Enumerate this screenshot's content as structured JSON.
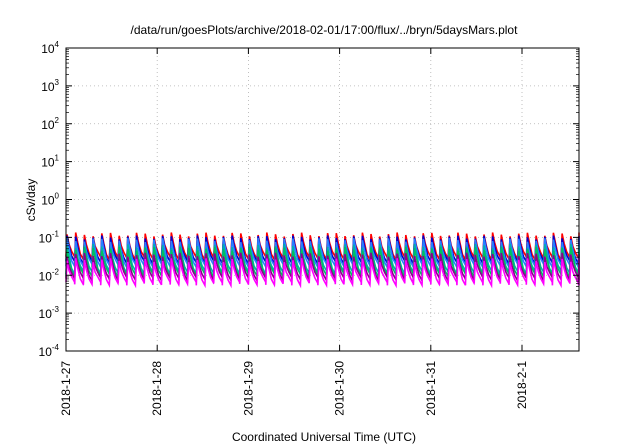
{
  "chart_data": {
    "type": "line",
    "title": "/data/run/goesPlots/archive/2018-02-01/17:00/flux/../bryn/5daysMars.plot",
    "xlabel": "Coordinated Universal Time (UTC)",
    "ylabel": "cSv/day",
    "yscale": "log",
    "ylim": [
      0.0001,
      10000
    ],
    "xlim_days": [
      0,
      5.7
    ],
    "grid": true,
    "x_ticks": [
      {
        "label": "2018-1-27",
        "day": 0
      },
      {
        "label": "2018-1-28",
        "day": 1
      },
      {
        "label": "2018-1-29",
        "day": 2
      },
      {
        "label": "2018-1-30",
        "day": 3
      },
      {
        "label": "2018-1-31",
        "day": 4
      },
      {
        "label": "2018-2-1",
        "day": 5
      }
    ],
    "y_ticks": [
      {
        "base": "10",
        "exp": "4",
        "value": 10000
      },
      {
        "base": "10",
        "exp": "3",
        "value": 1000
      },
      {
        "base": "10",
        "exp": "2",
        "value": 100
      },
      {
        "base": "10",
        "exp": "1",
        "value": 10
      },
      {
        "base": "10",
        "exp": "0",
        "value": 1
      },
      {
        "base": "10",
        "exp": "-1",
        "value": 0.1
      },
      {
        "base": "10",
        "exp": "-2",
        "value": 0.01
      },
      {
        "base": "10",
        "exp": "-3",
        "value": 0.001
      },
      {
        "base": "10",
        "exp": "-4",
        "value": 0.0001
      }
    ],
    "pattern": {
      "cycles_per_day": 10.5,
      "description": "periodic sawtooth: sharp rise then decay, repeating across all series"
    },
    "series": [
      {
        "color": "#ff0000",
        "peak": 0.12,
        "trough": 0.028
      },
      {
        "color": "#0000cc",
        "peak": 0.1,
        "trough": 0.022
      },
      {
        "color": "#2a7fff",
        "peak": 0.085,
        "trough": 0.018
      },
      {
        "color": "#00b0b0",
        "peak": 0.06,
        "trough": 0.012
      },
      {
        "color": "#00c060",
        "peak": 0.05,
        "trough": 0.01
      },
      {
        "color": "#8b008b",
        "peak": 0.035,
        "trough": 0.008
      },
      {
        "color": "#ff00ff",
        "peak": 0.025,
        "trough": 0.006
      }
    ]
  }
}
